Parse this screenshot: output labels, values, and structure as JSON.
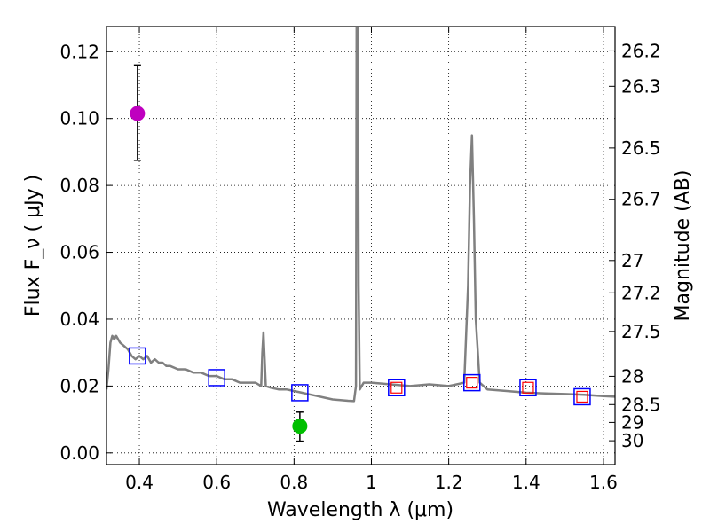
{
  "chart_data": {
    "type": "scatter",
    "title": "",
    "xlabel": "Wavelength  λ (μm)",
    "ylabel": "Flux  F_ν  ( μJy )",
    "ylabel_right": "Magnitude (AB)",
    "xlim": [
      0.315,
      1.63
    ],
    "ylim": [
      -0.0035,
      0.1275
    ],
    "grid": true,
    "x_ticks": [
      0.4,
      0.6,
      0.8,
      1.0,
      1.2,
      1.4,
      1.6
    ],
    "x_tick_labels": [
      "0.4",
      "0.6",
      "0.8",
      "1",
      "1.2",
      "1.4",
      "1.6"
    ],
    "y_ticks": [
      0.0,
      0.02,
      0.04,
      0.06,
      0.08,
      0.1,
      0.12
    ],
    "y_tick_labels": [
      "0.00",
      "0.02",
      "0.04",
      "0.06",
      "0.08",
      "0.10",
      "0.12"
    ],
    "right_ticks": [
      26.2,
      26.3,
      26.5,
      26.7,
      27,
      27.2,
      27.5,
      28,
      28.5,
      29,
      30
    ],
    "right_tick_labels": [
      "26.2",
      "26.3",
      "26.5",
      "26.7",
      "27",
      "27.2",
      "27.5",
      "28",
      "28.5",
      "29",
      "30"
    ],
    "series": [
      {
        "name": "model spectrum",
        "kind": "line",
        "color": "#808080",
        "x": [
          0.315,
          0.32,
          0.325,
          0.33,
          0.335,
          0.34,
          0.35,
          0.36,
          0.37,
          0.38,
          0.39,
          0.4,
          0.41,
          0.42,
          0.43,
          0.44,
          0.45,
          0.46,
          0.47,
          0.48,
          0.5,
          0.52,
          0.54,
          0.56,
          0.58,
          0.6,
          0.62,
          0.64,
          0.66,
          0.68,
          0.7,
          0.715,
          0.718,
          0.721,
          0.724,
          0.727,
          0.74,
          0.76,
          0.78,
          0.8,
          0.82,
          0.84,
          0.86,
          0.88,
          0.9,
          0.92,
          0.94,
          0.955,
          0.96,
          0.962,
          0.9635,
          0.965,
          0.967,
          0.97,
          0.975,
          0.98,
          1.0,
          1.05,
          1.1,
          1.15,
          1.2,
          1.24,
          1.25,
          1.255,
          1.26,
          1.265,
          1.27,
          1.28,
          1.3,
          1.35,
          1.4,
          1.45,
          1.5,
          1.55,
          1.6,
          1.63
        ],
        "y": [
          0.019,
          0.025,
          0.033,
          0.035,
          0.034,
          0.035,
          0.033,
          0.032,
          0.031,
          0.029,
          0.028,
          0.029,
          0.028,
          0.029,
          0.027,
          0.028,
          0.027,
          0.027,
          0.026,
          0.026,
          0.025,
          0.025,
          0.024,
          0.024,
          0.023,
          0.023,
          0.022,
          0.022,
          0.021,
          0.021,
          0.021,
          0.02,
          0.03,
          0.036,
          0.028,
          0.02,
          0.0195,
          0.019,
          0.019,
          0.0185,
          0.018,
          0.0175,
          0.017,
          0.0165,
          0.016,
          0.0158,
          0.0156,
          0.0155,
          0.02,
          0.14,
          0.14,
          0.14,
          0.05,
          0.019,
          0.02,
          0.021,
          0.021,
          0.0205,
          0.02,
          0.0205,
          0.02,
          0.021,
          0.05,
          0.08,
          0.095,
          0.07,
          0.04,
          0.021,
          0.019,
          0.0185,
          0.018,
          0.0178,
          0.0176,
          0.0174,
          0.017,
          0.0168
        ]
      },
      {
        "name": "observed photometry (open squares)",
        "kind": "marker",
        "color": "#0000ff",
        "x": [
          0.395,
          0.6,
          0.815,
          1.065,
          1.26,
          1.405,
          1.545
        ],
        "y": [
          0.029,
          0.0225,
          0.018,
          0.0195,
          0.021,
          0.0195,
          0.0168
        ]
      },
      {
        "name": "model photometry (small red squares)",
        "kind": "marker",
        "color": "#ff0000",
        "x": [
          1.065,
          1.26,
          1.405,
          1.545
        ],
        "y": [
          0.0195,
          0.021,
          0.0195,
          0.0168
        ]
      },
      {
        "name": "magenta point",
        "kind": "errorbar",
        "color": "#bf00bf",
        "x": [
          0.395
        ],
        "y": [
          0.1015
        ],
        "yerr_low": [
          0.0875
        ],
        "yerr_high": [
          0.116
        ]
      },
      {
        "name": "green point",
        "kind": "errorbar",
        "color": "#00bf00",
        "x": [
          0.815
        ],
        "y": [
          0.008
        ],
        "yerr_low": [
          0.0035
        ],
        "yerr_high": [
          0.0122
        ]
      }
    ]
  }
}
